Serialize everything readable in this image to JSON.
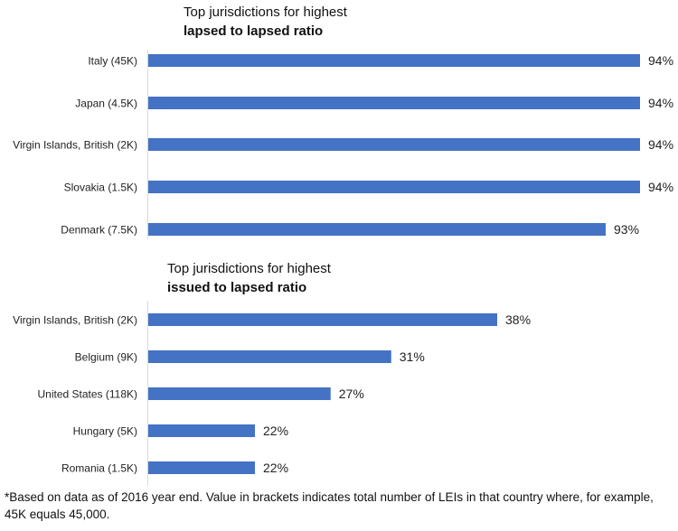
{
  "chart_data": [
    {
      "type": "bar",
      "orientation": "horizontal",
      "title_line1": "Top jurisdictions for highest",
      "title_line2": "lapsed to lapsed ratio",
      "categories": [
        "Italy (45K)",
        "Japan (4.5K)",
        "Virgin Islands, British (2K)",
        "Slovakia (1.5K)",
        "Denmark (7.5K)"
      ],
      "values": [
        94,
        94,
        94,
        94,
        93
      ],
      "labels": [
        "94%",
        "94%",
        "94%",
        "94%",
        "93%"
      ],
      "unit": "%",
      "color": "#4472C4",
      "grid": false
    },
    {
      "type": "bar",
      "orientation": "horizontal",
      "title_line1": "Top jurisdictions for highest",
      "title_line2": "issued to lapsed ratio",
      "categories": [
        "Virgin Islands, British (2K)",
        "Belgium (9K)",
        "United States (118K)",
        "Hungary (5K)",
        "Romania (1.5K)"
      ],
      "values": [
        38,
        31,
        27,
        22,
        22
      ],
      "labels": [
        "38%",
        "31%",
        "27%",
        "22%",
        "22%"
      ],
      "unit": "%",
      "color": "#4472C4",
      "grid": false
    }
  ],
  "footnote": "*Based on data as of 2016 year end. Value in brackets indicates total number of LEIs in that country where, for example, 45K equals 45,000."
}
